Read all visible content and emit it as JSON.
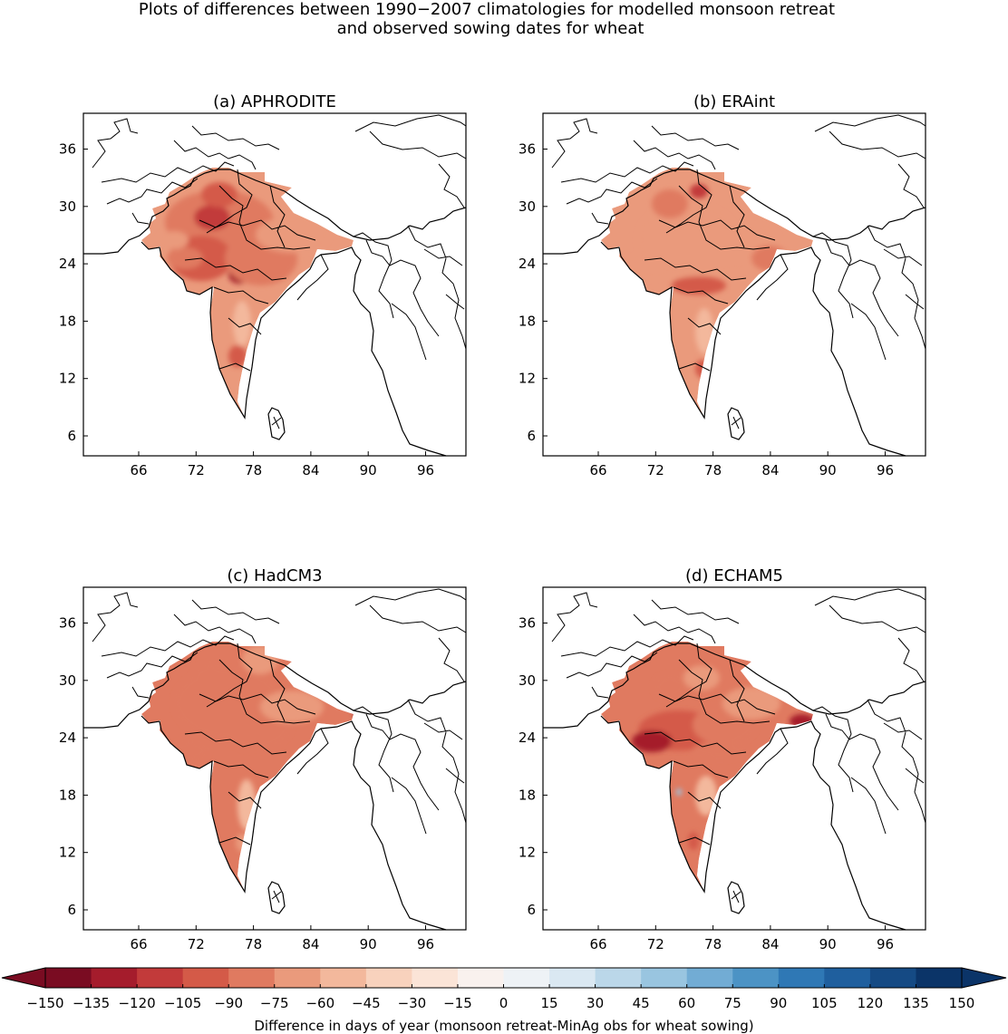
{
  "figure": {
    "title_line1": "Plots of differences between 1990−2007 climatologies for modelled monsoon retreat",
    "title_line2": "and observed sowing dates for wheat"
  },
  "chart_data": [
    {
      "type": "heatmap",
      "title": "(a) APHRODITE",
      "xticks": [
        66,
        72,
        78,
        84,
        90,
        96
      ],
      "yticks": [
        6,
        12,
        18,
        24,
        30,
        36
      ],
      "xlim": [
        60,
        100
      ],
      "ylim": [
        4,
        40
      ],
      "xlabel": "",
      "ylabel": "",
      "typical_value": -75
    },
    {
      "type": "heatmap",
      "title": "(b) ERAint",
      "xticks": [
        66,
        72,
        78,
        84,
        90,
        96
      ],
      "yticks": [
        6,
        12,
        18,
        24,
        30,
        36
      ],
      "xlim": [
        60,
        100
      ],
      "ylim": [
        4,
        40
      ],
      "xlabel": "",
      "ylabel": "",
      "typical_value": -70
    },
    {
      "type": "heatmap",
      "title": "(c) HadCM3",
      "xticks": [
        66,
        72,
        78,
        84,
        90,
        96
      ],
      "yticks": [
        6,
        12,
        18,
        24,
        30,
        36
      ],
      "xlim": [
        60,
        100
      ],
      "ylim": [
        4,
        40
      ],
      "xlabel": "",
      "ylabel": "",
      "typical_value": -80
    },
    {
      "type": "heatmap",
      "title": "(d) ECHAM5",
      "xticks": [
        66,
        72,
        78,
        84,
        90,
        96
      ],
      "yticks": [
        6,
        12,
        18,
        24,
        30,
        36
      ],
      "xlim": [
        60,
        100
      ],
      "ylim": [
        4,
        40
      ],
      "xlabel": "",
      "ylabel": "",
      "typical_value": -85
    }
  ],
  "colorbar": {
    "ticks": [
      "−150",
      "−135",
      "−120",
      "−105",
      "−90",
      "−75",
      "−60",
      "−45",
      "−30",
      "−15",
      "0",
      "15",
      "30",
      "45",
      "60",
      "75",
      "90",
      "105",
      "120",
      "135",
      "150"
    ],
    "colors": [
      "#7a0c22",
      "#a51c2c",
      "#c23a3a",
      "#d45a48",
      "#e07a60",
      "#ea9a7c",
      "#f3b89c",
      "#f8d2bd",
      "#fbe4d7",
      "#f9f1ee",
      "#eef2f6",
      "#dae8f2",
      "#bbd7e9",
      "#99c5e0",
      "#72acd4",
      "#4c93c5",
      "#2f78b5",
      "#1f5f9e",
      "#154a84",
      "#0b3468"
    ],
    "label": "Difference in days of year (monsoon retreat-MinAg obs for wheat sowing)",
    "extend": "both",
    "vmin": -150,
    "vmax": 150
  }
}
